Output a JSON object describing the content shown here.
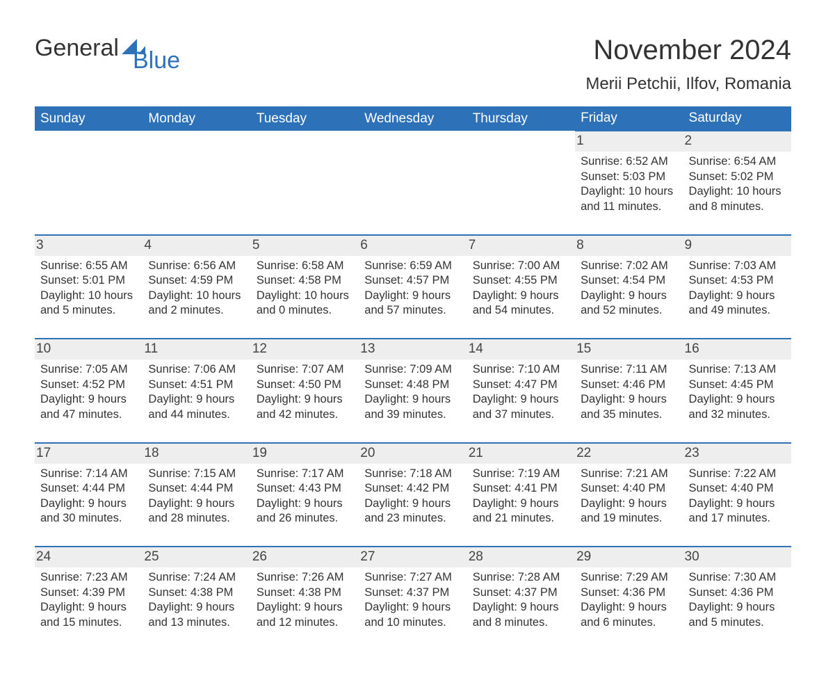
{
  "logo": {
    "word1": "General",
    "word2": "Blue",
    "word1_color": "#333333",
    "word2_color": "#2d72b8",
    "sail_color": "#2d72b8"
  },
  "title": {
    "month_year": "November 2024",
    "location": "Merii Petchii, Ilfov, Romania"
  },
  "style": {
    "header_bg": "#2d72b8",
    "header_text": "#ffffff",
    "row_divider": "#2d72b8",
    "daynum_bg": "#eeeeee",
    "body_text": "#333333",
    "page_bg": "#ffffff",
    "header_fontsize": 19,
    "title_fontsize": 40,
    "subtitle_fontsize": 24,
    "body_fontsize": 16.5
  },
  "days_of_week": [
    "Sunday",
    "Monday",
    "Tuesday",
    "Wednesday",
    "Thursday",
    "Friday",
    "Saturday"
  ],
  "weeks": [
    [
      null,
      null,
      null,
      null,
      null,
      {
        "n": "1",
        "sunrise": "Sunrise: 6:52 AM",
        "sunset": "Sunset: 5:03 PM",
        "day1": "Daylight: 10 hours",
        "day2": "and 11 minutes."
      },
      {
        "n": "2",
        "sunrise": "Sunrise: 6:54 AM",
        "sunset": "Sunset: 5:02 PM",
        "day1": "Daylight: 10 hours",
        "day2": "and 8 minutes."
      }
    ],
    [
      {
        "n": "3",
        "sunrise": "Sunrise: 6:55 AM",
        "sunset": "Sunset: 5:01 PM",
        "day1": "Daylight: 10 hours",
        "day2": "and 5 minutes."
      },
      {
        "n": "4",
        "sunrise": "Sunrise: 6:56 AM",
        "sunset": "Sunset: 4:59 PM",
        "day1": "Daylight: 10 hours",
        "day2": "and 2 minutes."
      },
      {
        "n": "5",
        "sunrise": "Sunrise: 6:58 AM",
        "sunset": "Sunset: 4:58 PM",
        "day1": "Daylight: 10 hours",
        "day2": "and 0 minutes."
      },
      {
        "n": "6",
        "sunrise": "Sunrise: 6:59 AM",
        "sunset": "Sunset: 4:57 PM",
        "day1": "Daylight: 9 hours",
        "day2": "and 57 minutes."
      },
      {
        "n": "7",
        "sunrise": "Sunrise: 7:00 AM",
        "sunset": "Sunset: 4:55 PM",
        "day1": "Daylight: 9 hours",
        "day2": "and 54 minutes."
      },
      {
        "n": "8",
        "sunrise": "Sunrise: 7:02 AM",
        "sunset": "Sunset: 4:54 PM",
        "day1": "Daylight: 9 hours",
        "day2": "and 52 minutes."
      },
      {
        "n": "9",
        "sunrise": "Sunrise: 7:03 AM",
        "sunset": "Sunset: 4:53 PM",
        "day1": "Daylight: 9 hours",
        "day2": "and 49 minutes."
      }
    ],
    [
      {
        "n": "10",
        "sunrise": "Sunrise: 7:05 AM",
        "sunset": "Sunset: 4:52 PM",
        "day1": "Daylight: 9 hours",
        "day2": "and 47 minutes."
      },
      {
        "n": "11",
        "sunrise": "Sunrise: 7:06 AM",
        "sunset": "Sunset: 4:51 PM",
        "day1": "Daylight: 9 hours",
        "day2": "and 44 minutes."
      },
      {
        "n": "12",
        "sunrise": "Sunrise: 7:07 AM",
        "sunset": "Sunset: 4:50 PM",
        "day1": "Daylight: 9 hours",
        "day2": "and 42 minutes."
      },
      {
        "n": "13",
        "sunrise": "Sunrise: 7:09 AM",
        "sunset": "Sunset: 4:48 PM",
        "day1": "Daylight: 9 hours",
        "day2": "and 39 minutes."
      },
      {
        "n": "14",
        "sunrise": "Sunrise: 7:10 AM",
        "sunset": "Sunset: 4:47 PM",
        "day1": "Daylight: 9 hours",
        "day2": "and 37 minutes."
      },
      {
        "n": "15",
        "sunrise": "Sunrise: 7:11 AM",
        "sunset": "Sunset: 4:46 PM",
        "day1": "Daylight: 9 hours",
        "day2": "and 35 minutes."
      },
      {
        "n": "16",
        "sunrise": "Sunrise: 7:13 AM",
        "sunset": "Sunset: 4:45 PM",
        "day1": "Daylight: 9 hours",
        "day2": "and 32 minutes."
      }
    ],
    [
      {
        "n": "17",
        "sunrise": "Sunrise: 7:14 AM",
        "sunset": "Sunset: 4:44 PM",
        "day1": "Daylight: 9 hours",
        "day2": "and 30 minutes."
      },
      {
        "n": "18",
        "sunrise": "Sunrise: 7:15 AM",
        "sunset": "Sunset: 4:44 PM",
        "day1": "Daylight: 9 hours",
        "day2": "and 28 minutes."
      },
      {
        "n": "19",
        "sunrise": "Sunrise: 7:17 AM",
        "sunset": "Sunset: 4:43 PM",
        "day1": "Daylight: 9 hours",
        "day2": "and 26 minutes."
      },
      {
        "n": "20",
        "sunrise": "Sunrise: 7:18 AM",
        "sunset": "Sunset: 4:42 PM",
        "day1": "Daylight: 9 hours",
        "day2": "and 23 minutes."
      },
      {
        "n": "21",
        "sunrise": "Sunrise: 7:19 AM",
        "sunset": "Sunset: 4:41 PM",
        "day1": "Daylight: 9 hours",
        "day2": "and 21 minutes."
      },
      {
        "n": "22",
        "sunrise": "Sunrise: 7:21 AM",
        "sunset": "Sunset: 4:40 PM",
        "day1": "Daylight: 9 hours",
        "day2": "and 19 minutes."
      },
      {
        "n": "23",
        "sunrise": "Sunrise: 7:22 AM",
        "sunset": "Sunset: 4:40 PM",
        "day1": "Daylight: 9 hours",
        "day2": "and 17 minutes."
      }
    ],
    [
      {
        "n": "24",
        "sunrise": "Sunrise: 7:23 AM",
        "sunset": "Sunset: 4:39 PM",
        "day1": "Daylight: 9 hours",
        "day2": "and 15 minutes."
      },
      {
        "n": "25",
        "sunrise": "Sunrise: 7:24 AM",
        "sunset": "Sunset: 4:38 PM",
        "day1": "Daylight: 9 hours",
        "day2": "and 13 minutes."
      },
      {
        "n": "26",
        "sunrise": "Sunrise: 7:26 AM",
        "sunset": "Sunset: 4:38 PM",
        "day1": "Daylight: 9 hours",
        "day2": "and 12 minutes."
      },
      {
        "n": "27",
        "sunrise": "Sunrise: 7:27 AM",
        "sunset": "Sunset: 4:37 PM",
        "day1": "Daylight: 9 hours",
        "day2": "and 10 minutes."
      },
      {
        "n": "28",
        "sunrise": "Sunrise: 7:28 AM",
        "sunset": "Sunset: 4:37 PM",
        "day1": "Daylight: 9 hours",
        "day2": "and 8 minutes."
      },
      {
        "n": "29",
        "sunrise": "Sunrise: 7:29 AM",
        "sunset": "Sunset: 4:36 PM",
        "day1": "Daylight: 9 hours",
        "day2": "and 6 minutes."
      },
      {
        "n": "30",
        "sunrise": "Sunrise: 7:30 AM",
        "sunset": "Sunset: 4:36 PM",
        "day1": "Daylight: 9 hours",
        "day2": "and 5 minutes."
      }
    ]
  ]
}
